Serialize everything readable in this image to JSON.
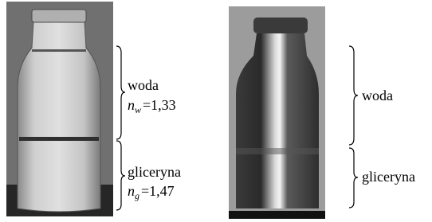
{
  "left": {
    "upper": {
      "label": "woda",
      "symbol": "n",
      "subscript": "w",
      "value": "=1,33"
    },
    "lower": {
      "label": "gliceryna",
      "symbol": "n",
      "subscript": "g",
      "value": "=1,47"
    }
  },
  "right": {
    "upper": {
      "label": "woda"
    },
    "lower": {
      "label": "gliceryna"
    }
  }
}
